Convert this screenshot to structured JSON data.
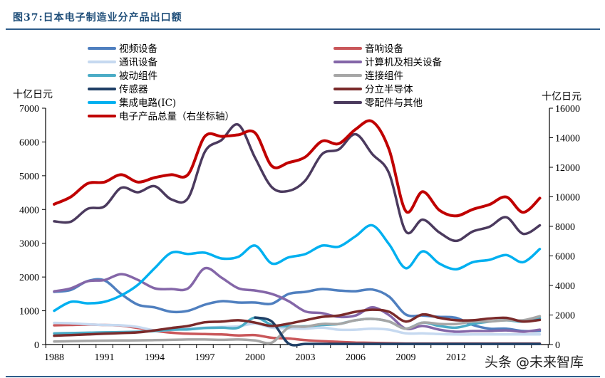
{
  "title": "图37:日本电子制造业分产品出口额",
  "watermark": "头条 @未来智库",
  "chart_data": {
    "type": "line",
    "title": "图37:日本电子制造业分产品出口额",
    "ylabel_left": "十亿日元",
    "ylabel_right": "十亿日元",
    "ylim_left": [
      0,
      7000
    ],
    "ylim_right": [
      0,
      16000
    ],
    "yticks_left": [
      "0",
      "1000",
      "2000",
      "3000",
      "4000",
      "5000",
      "6000",
      "7000"
    ],
    "yticks_right": [
      "0",
      "2000",
      "4000",
      "6000",
      "8000",
      "10000",
      "12000",
      "14000",
      "16000"
    ],
    "xtick_labels": [
      "1988",
      "1991",
      "1994",
      "1997",
      "2000",
      "2003",
      "2006",
      "2009",
      "2012"
    ],
    "grid": false,
    "legend_placement": "top",
    "x": [
      1988,
      1989,
      1990,
      1991,
      1992,
      1993,
      1994,
      1995,
      1996,
      1997,
      1998,
      1999,
      2000,
      2001,
      2002,
      2003,
      2004,
      2005,
      2006,
      2007,
      2008,
      2009,
      2010,
      2011,
      2012,
      2013,
      2014,
      2015,
      2016,
      2017
    ],
    "series": [
      {
        "name": "视频设备",
        "axis": "left",
        "color": "#4f7fbf",
        "values": [
          1560,
          1620,
          1880,
          1900,
          1500,
          1180,
          1100,
          970,
          1000,
          1180,
          1285,
          1245,
          1245,
          1210,
          1500,
          1560,
          1645,
          1600,
          1580,
          1630,
          1420,
          890,
          860,
          820,
          790,
          580,
          470,
          470,
          400,
          400
        ]
      },
      {
        "name": "音响设备",
        "axis": "left",
        "color": "#c9575a",
        "values": [
          570,
          580,
          590,
          580,
          560,
          490,
          410,
          350,
          320,
          310,
          300,
          270,
          280,
          200,
          180,
          130,
          100,
          80,
          60,
          50,
          40,
          30,
          30,
          30,
          30,
          30,
          30,
          30,
          30,
          30
        ]
      },
      {
        "name": "通讯设备",
        "axis": "left",
        "color": "#c6d9f0",
        "values": [
          640,
          630,
          600,
          580,
          570,
          520,
          420,
          430,
          470,
          500,
          520,
          540,
          620,
          500,
          480,
          470,
          500,
          440,
          440,
          470,
          440,
          330,
          330,
          310,
          300,
          300,
          300,
          300,
          300,
          300
        ]
      },
      {
        "name": "计算机及相关设备",
        "axis": "left",
        "color": "#8466a8",
        "values": [
          1575,
          1665,
          1875,
          1910,
          2085,
          1915,
          1665,
          1645,
          1665,
          2260,
          1980,
          1665,
          1600,
          1500,
          1285,
          980,
          930,
          820,
          860,
          1100,
          870,
          470,
          550,
          440,
          380,
          400,
          400,
          420,
          380,
          440
        ]
      },
      {
        "name": "被动组件",
        "axis": "left",
        "color": "#4bacc6",
        "values": [
          330,
          340,
          350,
          360,
          370,
          380,
          400,
          440,
          450,
          490,
          500,
          500,
          800,
          580,
          540,
          540,
          580,
          610,
          720,
          760,
          680,
          470,
          650,
          550,
          500,
          610,
          680,
          720,
          680,
          780
        ]
      },
      {
        "name": "连接组件",
        "axis": "left",
        "color": "#a6a6a6",
        "values": [
          90,
          100,
          110,
          115,
          120,
          125,
          130,
          140,
          150,
          150,
          140,
          150,
          120,
          60,
          500,
          530,
          610,
          610,
          720,
          760,
          680,
          470,
          650,
          610,
          610,
          680,
          680,
          720,
          720,
          840
        ]
      },
      {
        "name": "传感器",
        "axis": "left",
        "color": "#1f3f66",
        "values": [
          null,
          null,
          null,
          null,
          null,
          null,
          null,
          null,
          null,
          null,
          null,
          null,
          800,
          680,
          30,
          20,
          20,
          20,
          20,
          20,
          20,
          20,
          20,
          20,
          20,
          20,
          20,
          20,
          20,
          20
        ]
      },
      {
        "name": "分立半导体",
        "axis": "left",
        "color": "#7a2a2a",
        "values": [
          260,
          280,
          300,
          320,
          340,
          360,
          420,
          490,
          550,
          660,
          680,
          720,
          650,
          550,
          620,
          720,
          820,
          860,
          970,
          1030,
          970,
          680,
          890,
          790,
          720,
          720,
          770,
          790,
          680,
          730
        ]
      },
      {
        "name": "集成电路(IC)",
        "axis": "left",
        "color": "#00b0f0",
        "values": [
          1000,
          1265,
          1220,
          1265,
          1455,
          1770,
          2260,
          2720,
          2685,
          2720,
          2550,
          2600,
          2930,
          2400,
          2580,
          2680,
          2930,
          2900,
          3210,
          3530,
          2970,
          2260,
          2760,
          2400,
          2230,
          2440,
          2510,
          2650,
          2440,
          2830
        ]
      },
      {
        "name": "零配件与其他",
        "axis": "left",
        "color": "#4b3a5e",
        "values": [
          3650,
          3640,
          4020,
          4090,
          4640,
          4510,
          4690,
          4300,
          4340,
          5710,
          6060,
          6510,
          5530,
          4660,
          4550,
          4860,
          5640,
          5780,
          6230,
          5640,
          5070,
          3350,
          3700,
          3320,
          3070,
          3350,
          3490,
          3770,
          3280,
          3530
        ]
      },
      {
        "name": "电子产品总量（右坐标轴）",
        "axis": "right",
        "color": "#c00000",
        "values": [
          9500,
          10000,
          10900,
          11000,
          11500,
          11000,
          11300,
          11500,
          11520,
          14090,
          14090,
          14200,
          14330,
          12080,
          12320,
          12700,
          13770,
          13600,
          14570,
          15100,
          13200,
          9030,
          10350,
          9100,
          8710,
          9150,
          9480,
          9990,
          8950,
          9910
        ]
      }
    ]
  }
}
